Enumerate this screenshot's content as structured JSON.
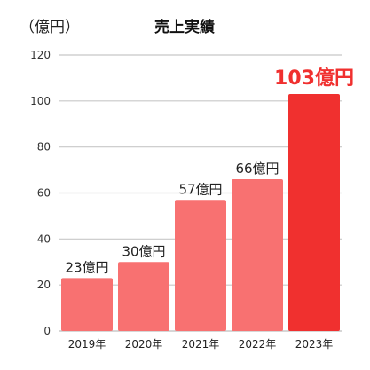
{
  "chart_data": {
    "type": "bar",
    "title": "売上実績",
    "ylabel": "（億円）",
    "xlabel": "",
    "categories": [
      "2019年",
      "2020年",
      "2021年",
      "2022年",
      "2023年"
    ],
    "values": [
      23,
      30,
      57,
      66,
      103
    ],
    "data_labels": [
      "23億円",
      "30億円",
      "57億円",
      "66億円",
      "103億円"
    ],
    "ylim": [
      0,
      120
    ],
    "yticks": [
      0,
      20,
      40,
      60,
      80,
      100,
      120
    ],
    "ytick_labels": [
      "0",
      "20",
      "40",
      "60",
      "80",
      "100",
      "120"
    ],
    "grid": true,
    "highlight_index": 4,
    "colors": {
      "bar": "#f87171",
      "bar_highlight": "#f0302f",
      "grid": "#c8c8c8",
      "highlight_label": "#f0302f"
    }
  }
}
